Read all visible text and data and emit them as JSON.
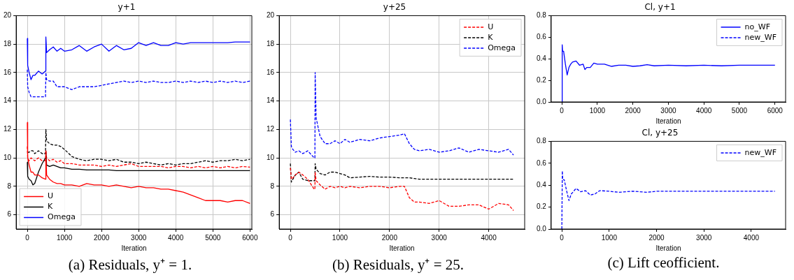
{
  "chart_data": [
    {
      "type": "line",
      "title": "y+1",
      "xlabel": "Iteration",
      "xlim": [
        -300,
        6050
      ],
      "ylim": [
        5,
        20
      ],
      "xticks": [
        0,
        1000,
        2000,
        3000,
        4000,
        5000,
        6000
      ],
      "yticks": [
        6,
        8,
        10,
        12,
        14,
        16,
        18,
        20
      ],
      "grid": true,
      "legend": "bottom left",
      "marker": "none",
      "annotations": [
        "(a) Residuals, y⁺ = 1."
      ],
      "x": [
        0,
        10,
        50,
        100,
        150,
        200,
        300,
        400,
        490,
        500,
        520,
        600,
        700,
        800,
        900,
        1000,
        1200,
        1400,
        1600,
        1800,
        2000,
        2200,
        2400,
        2600,
        2800,
        3000,
        3200,
        3400,
        3600,
        3800,
        4000,
        4200,
        4400,
        4600,
        4800,
        5000,
        5200,
        5400,
        5600,
        5800,
        6000
      ],
      "series": [
        {
          "name": "U",
          "color": "#ff0000",
          "line_style": "solid",
          "values": [
            12.5,
            10.0,
            9.5,
            9.0,
            9.0,
            8.8,
            8.8,
            8.6,
            8.5,
            10.5,
            8.8,
            8.5,
            8.3,
            8.2,
            8.2,
            8.1,
            8.1,
            8.0,
            8.2,
            8.1,
            8.1,
            8.0,
            8.1,
            8.0,
            7.9,
            8.0,
            7.9,
            7.9,
            7.8,
            7.8,
            7.7,
            7.6,
            7.4,
            7.2,
            7.0,
            7.0,
            7.0,
            6.9,
            7.0,
            7.0,
            6.8
          ]
        },
        {
          "name": "K",
          "color": "#000000",
          "line_style": "solid",
          "values": [
            9.7,
            8.7,
            8.5,
            8.4,
            8.1,
            8.2,
            9.0,
            9.6,
            10.0,
            10.5,
            9.5,
            9.4,
            9.5,
            9.4,
            9.3,
            9.3,
            9.2,
            9.2,
            9.15,
            9.15,
            9.15,
            9.15,
            9.1,
            9.1,
            9.1,
            9.1,
            9.1,
            9.1,
            9.1,
            9.1,
            9.1,
            9.1,
            9.1,
            9.1,
            9.1,
            9.1,
            9.1,
            9.1,
            9.1,
            9.1,
            9.1
          ]
        },
        {
          "name": "Omega",
          "color": "#0000ff",
          "line_style": "solid",
          "values": [
            18.4,
            16.5,
            16.0,
            15.5,
            15.8,
            15.8,
            16.1,
            15.9,
            16.1,
            18.5,
            17.4,
            17.6,
            17.8,
            17.5,
            17.7,
            17.5,
            17.6,
            17.9,
            17.5,
            17.8,
            18.0,
            17.5,
            17.9,
            17.6,
            17.7,
            18.1,
            17.9,
            18.1,
            17.9,
            17.9,
            18.1,
            18.0,
            18.1,
            18.1,
            18.1,
            18.1,
            18.1,
            18.1,
            18.15,
            18.15,
            18.15
          ]
        },
        {
          "color": "#ff0000",
          "line_style": "dashed",
          "values": [
            10.8,
            10.0,
            9.8,
            10.0,
            9.9,
            9.8,
            10.0,
            9.8,
            9.8,
            10.5,
            10.0,
            9.8,
            9.9,
            9.7,
            9.8,
            9.6,
            9.6,
            9.5,
            9.5,
            9.5,
            9.4,
            9.5,
            9.4,
            9.5,
            9.6,
            9.4,
            9.4,
            9.4,
            9.4,
            9.3,
            9.4,
            9.4,
            9.3,
            9.4,
            9.3,
            9.4,
            9.3,
            9.4,
            9.3,
            9.4,
            9.35
          ]
        },
        {
          "color": "#000000",
          "line_style": "dashed",
          "x": [
            0,
            50,
            100,
            150,
            200,
            300,
            400,
            490,
            500,
            520,
            600,
            700,
            800,
            900,
            1000,
            1200,
            1400,
            1600,
            1800,
            2000,
            2200,
            2400,
            2600,
            2800,
            3000,
            3200,
            3400,
            3600,
            3800,
            4000,
            4200,
            4400,
            4600,
            4800,
            5000,
            5200,
            5400,
            5600,
            5800,
            6000
          ],
          "values": [
            10.4,
            10.4,
            10.5,
            10.5,
            10.3,
            10.5,
            10.3,
            10.3,
            12.0,
            11.2,
            11.0,
            10.9,
            10.9,
            10.8,
            10.6,
            10.1,
            9.9,
            9.8,
            9.9,
            9.9,
            9.8,
            9.9,
            9.7,
            9.7,
            9.6,
            9.7,
            9.6,
            9.5,
            9.6,
            9.5,
            9.6,
            9.6,
            9.7,
            9.8,
            9.7,
            9.8,
            9.8,
            9.9,
            9.8,
            9.9
          ]
        },
        {
          "color": "#0000ff",
          "line_style": "dashed",
          "values": [
            16.2,
            15.0,
            14.6,
            14.3,
            14.3,
            14.3,
            14.3,
            14.3,
            14.3,
            16.0,
            15.5,
            15.4,
            15.4,
            15.0,
            15.0,
            15.0,
            14.8,
            15.0,
            15.0,
            15.0,
            15.1,
            15.2,
            15.3,
            15.4,
            15.3,
            15.4,
            15.3,
            15.4,
            15.3,
            15.3,
            15.4,
            15.3,
            15.4,
            15.3,
            15.4,
            15.3,
            15.4,
            15.3,
            15.4,
            15.3,
            15.4
          ]
        }
      ]
    },
    {
      "type": "line",
      "title": "y+25",
      "xlabel": "Iteration",
      "xlim": [
        -225,
        4725
      ],
      "ylim": [
        5,
        20
      ],
      "xticks": [
        0,
        1000,
        2000,
        3000,
        4000
      ],
      "yticks": [
        6,
        8,
        10,
        12,
        14,
        16,
        18,
        20
      ],
      "grid": true,
      "legend": "top right",
      "marker": "none",
      "annotations": [
        "(b) Residuals, y⁺ = 25."
      ],
      "x": [
        0,
        20,
        50,
        100,
        170,
        250,
        350,
        480,
        495,
        500,
        520,
        600,
        700,
        800,
        900,
        1000,
        1100,
        1200,
        1400,
        1600,
        1800,
        2000,
        2200,
        2300,
        2400,
        2500,
        2600,
        2800,
        3000,
        3200,
        3400,
        3600,
        3800,
        4000,
        4200,
        4400,
        4500
      ],
      "series": [
        {
          "name": "U",
          "color": "#ff0000",
          "line_style": "dashed",
          "values": [
            9.3,
            8.5,
            8.6,
            8.8,
            9.0,
            8.8,
            8.5,
            7.8,
            7.8,
            9.0,
            8.4,
            8.1,
            7.8,
            8.0,
            7.9,
            8.0,
            7.9,
            8.0,
            7.9,
            8.0,
            8.0,
            7.9,
            8.0,
            8.0,
            7.2,
            6.9,
            6.9,
            6.8,
            7.0,
            6.6,
            6.6,
            6.7,
            6.7,
            6.4,
            6.8,
            6.7,
            6.3
          ]
        },
        {
          "name": "K",
          "color": "#000000",
          "line_style": "dashed",
          "values": [
            9.6,
            8.3,
            8.5,
            8.8,
            9.0,
            8.5,
            8.4,
            8.4,
            8.4,
            9.6,
            9.2,
            8.9,
            8.8,
            9.0,
            9.0,
            8.9,
            8.8,
            8.6,
            8.65,
            8.7,
            8.65,
            8.65,
            8.6,
            8.6,
            8.6,
            8.55,
            8.5,
            8.5,
            8.5,
            8.5,
            8.5,
            8.5,
            8.5,
            8.5,
            8.5,
            8.5,
            8.5
          ]
        },
        {
          "name": "Omega",
          "color": "#0000ff",
          "line_style": "dashed",
          "values": [
            12.7,
            10.8,
            10.6,
            10.4,
            10.5,
            10.3,
            10.5,
            10.0,
            10.0,
            16.0,
            12.8,
            11.5,
            11.0,
            11.0,
            11.2,
            11.0,
            11.3,
            11.1,
            11.3,
            11.2,
            11.4,
            11.5,
            11.6,
            11.7,
            11.0,
            10.6,
            10.5,
            10.6,
            10.4,
            10.5,
            10.7,
            10.4,
            10.6,
            10.5,
            10.4,
            10.6,
            10.2
          ]
        }
      ]
    },
    {
      "type": "line",
      "title": "Cl, y+1",
      "xlabel": "Iteration",
      "xlim": [
        -300,
        6300
      ],
      "ylim": [
        0,
        0.8
      ],
      "xticks": [
        0,
        1000,
        2000,
        3000,
        4000,
        5000,
        6000
      ],
      "yticks": [
        {
          "value": 0,
          "label": "0.0"
        },
        0.2,
        0.4,
        0.6,
        0.8
      ],
      "grid": false,
      "legend": "top right",
      "marker": "none",
      "x": [
        0,
        10,
        20,
        50,
        100,
        150,
        200,
        250,
        300,
        400,
        500,
        600,
        650,
        700,
        800,
        900,
        1000,
        1200,
        1400,
        1600,
        1800,
        2000,
        2200,
        2400,
        2600,
        3000,
        3500,
        4000,
        4500,
        5000,
        5500,
        6000
      ],
      "series": [
        {
          "name": "no_WF",
          "color": "#0000ff",
          "line_style": "solid",
          "values": [
            0,
            0.53,
            0.47,
            0.47,
            0.35,
            0.25,
            0.32,
            0.35,
            0.37,
            0.38,
            0.34,
            0.35,
            0.3,
            0.32,
            0.32,
            0.36,
            0.35,
            0.35,
            0.33,
            0.34,
            0.34,
            0.33,
            0.335,
            0.345,
            0.335,
            0.34,
            0.335,
            0.34,
            0.335,
            0.34,
            0.34,
            0.34
          ]
        },
        {
          "name": "new_WF",
          "color": "#0000ff",
          "line_style": "dashed",
          "values": [
            null,
            null,
            null,
            null,
            null,
            null,
            null,
            null,
            null,
            null,
            null,
            null,
            null,
            null,
            null,
            null,
            null,
            null,
            null,
            null,
            null,
            null,
            null,
            null,
            null,
            null,
            null,
            null,
            null,
            null,
            null,
            null
          ]
        }
      ]
    },
    {
      "type": "line",
      "title": "Cl, y+25",
      "xlabel": "Iteration",
      "xlim": [
        -225,
        4725
      ],
      "ylim": [
        0,
        0.8
      ],
      "xticks": [
        0,
        1000,
        2000,
        3000,
        4000
      ],
      "yticks": [
        {
          "value": 0,
          "label": "0.0"
        },
        0.2,
        0.4,
        0.6,
        0.8
      ],
      "grid": false,
      "legend": "top right",
      "marker": "none",
      "annotations": [
        "(c) Lift ceofficient."
      ],
      "x": [
        0,
        10,
        20,
        50,
        100,
        150,
        200,
        300,
        400,
        500,
        600,
        700,
        800,
        1000,
        1200,
        1500,
        1800,
        2000,
        2500,
        3000,
        3500,
        4000,
        4500
      ],
      "series": [
        {
          "name": "new_WF",
          "color": "#0000ff",
          "line_style": "dashed",
          "values": [
            0,
            0.53,
            0.45,
            0.45,
            0.35,
            0.26,
            0.32,
            0.37,
            0.34,
            0.35,
            0.31,
            0.32,
            0.35,
            0.345,
            0.335,
            0.345,
            0.335,
            0.345,
            0.345,
            0.345,
            0.345,
            0.345,
            0.345
          ]
        }
      ]
    }
  ]
}
